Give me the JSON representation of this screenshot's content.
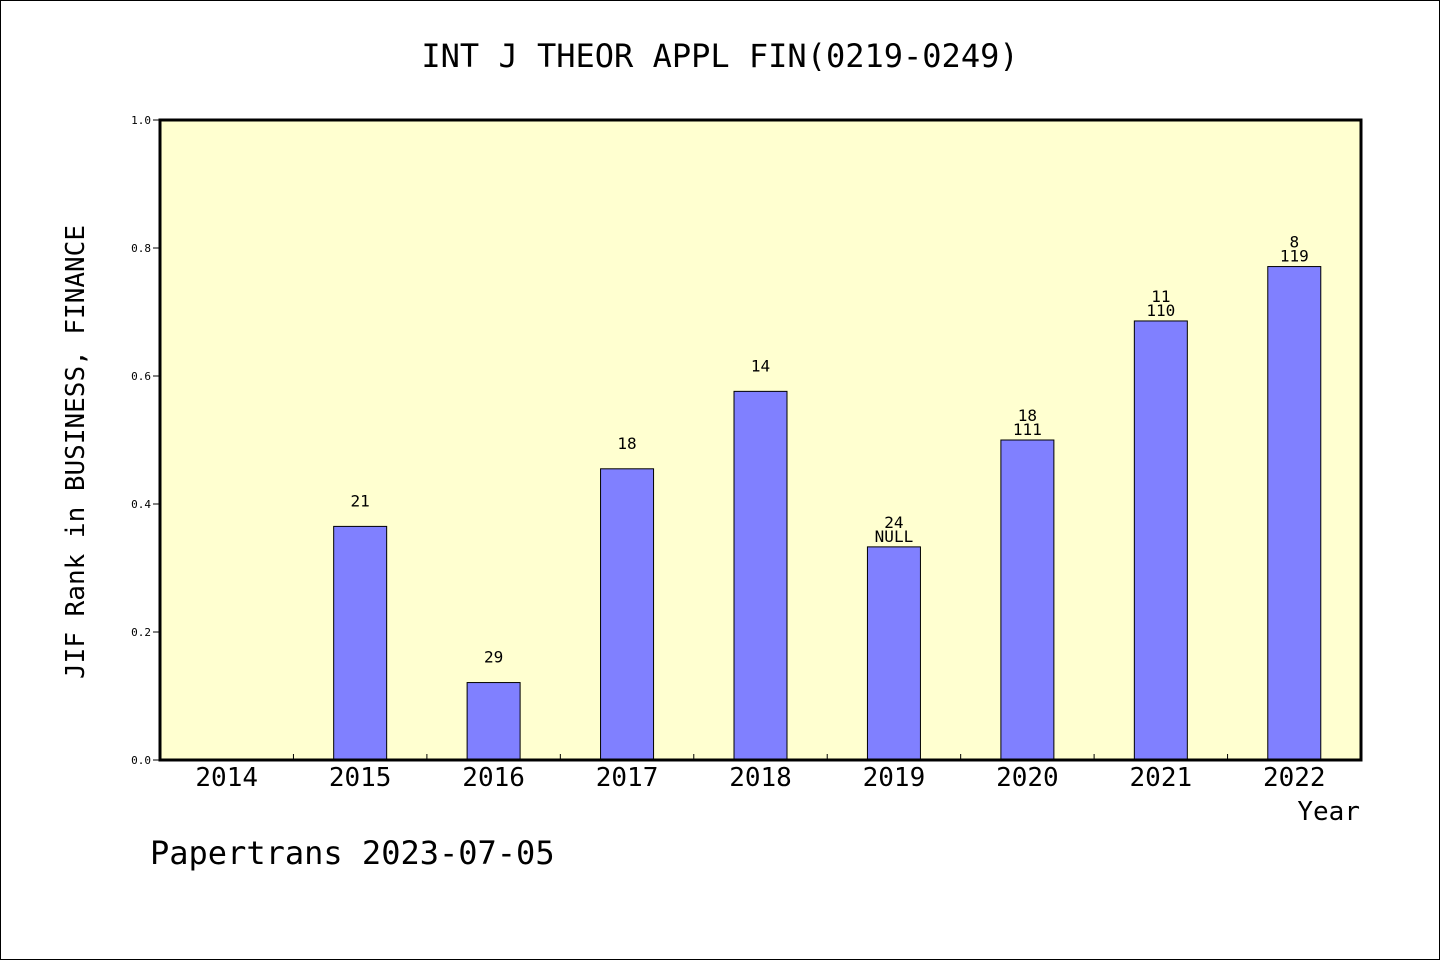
{
  "chart_data": {
    "type": "bar",
    "title": "INT J THEOR APPL FIN(0219-0249)",
    "xlabel": "Year",
    "ylabel": "JIF Rank in BUSINESS, FINANCE",
    "footer": "Papertrans 2023-07-05",
    "categories": [
      "2014",
      "2015",
      "2016",
      "2017",
      "2018",
      "2019",
      "2020",
      "2021",
      "2022"
    ],
    "values": [
      null,
      0.365,
      0.121,
      0.455,
      0.576,
      0.333,
      0.5,
      0.686,
      0.771
    ],
    "label_top": [
      "",
      "21",
      "29",
      "18",
      "14",
      "24",
      "18",
      "11",
      "8"
    ],
    "label_bottom": [
      "",
      "",
      "",
      "",
      "",
      "NULL",
      "111",
      "110",
      "119"
    ],
    "ylim": [
      0,
      1.0
    ],
    "yticks": [
      "0.0",
      "0.2",
      "0.4",
      "0.6",
      "0.8",
      "1.0"
    ],
    "grid": false,
    "colors": {
      "plot_background": "#ffffd0",
      "bar_fill": "#8080ff",
      "bar_stroke": "#000000"
    }
  }
}
